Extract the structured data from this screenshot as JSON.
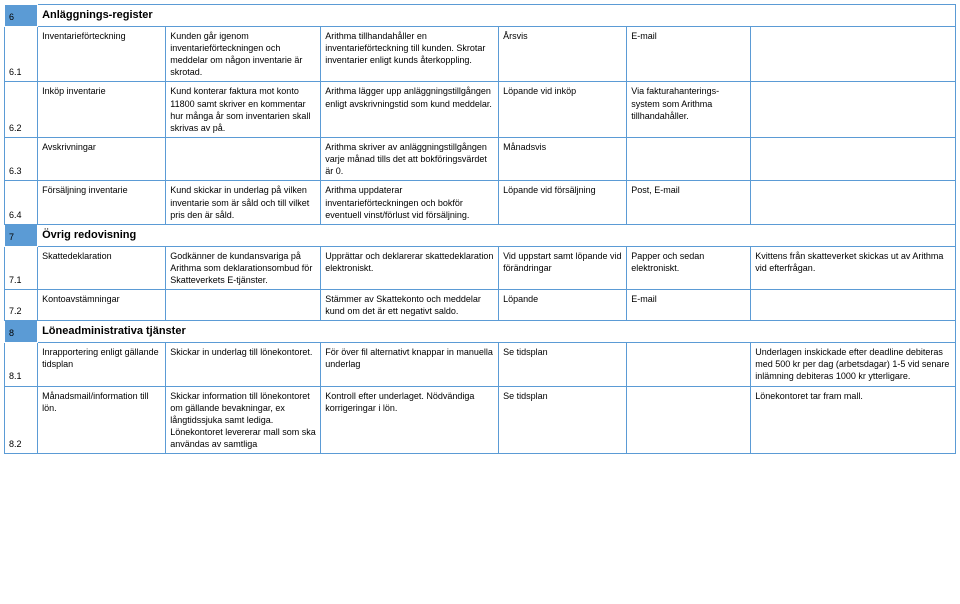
{
  "rows": [
    {
      "num": "6",
      "numClass": "num-blue",
      "header": "Anläggnings-register",
      "cells": null
    },
    {
      "num": "6.1",
      "cells": [
        "Inventarieförteckning",
        "Kunden går igenom inventarieförteckningen och meddelar om någon inventarie är skrotad.",
        "Arithma tillhandahåller en inventarieförteckning till kunden. Skrotar inventarier enligt kunds återkoppling.",
        "Årsvis",
        "E-mail",
        ""
      ]
    },
    {
      "num": "6.2",
      "cells": [
        "Inköp inventarie",
        "Kund konterar faktura mot konto 11800 samt skriver en kommentar hur många år som inventarien skall skrivas av på.",
        "Arithma lägger upp anläggningstillgången enligt avskrivningstid som kund meddelar.",
        "Löpande vid inköp",
        "Via fakturahanterings-system som Arithma tillhandahåller.",
        ""
      ]
    },
    {
      "num": "6.3",
      "cells": [
        "Avskrivningar",
        "",
        "Arithma skriver av anläggningstillgången varje månad tills det att bokföringsvärdet är 0.",
        "Månadsvis",
        "",
        ""
      ]
    },
    {
      "num": "6.4",
      "cells": [
        "Försäljning inventarie",
        "Kund skickar in underlag på vilken inventarie som är såld och till vilket pris den är såld.",
        "Arithma uppdaterar inventarieförteckningen och bokför eventuell vinst/förlust vid försäljning.",
        "Löpande vid försäljning",
        "Post, E-mail",
        ""
      ]
    },
    {
      "num": "7",
      "numClass": "num-blue",
      "header": "Övrig redovisning",
      "cells": null
    },
    {
      "num": "7.1",
      "cells": [
        "Skattedeklaration",
        "Godkänner de kundansvariga på Arithma som deklarationsombud för Skatteverkets E-tjänster.",
        "Upprättar och deklarerar skattedeklaration elektroniskt.",
        "Vid uppstart samt löpande vid förändringar",
        "Papper och sedan elektroniskt.",
        "Kvittens från skatteverket skickas ut av Arithma vid efterfrågan."
      ]
    },
    {
      "num": "7.2",
      "cells": [
        "Kontoavstämningar",
        "",
        "Stämmer av Skattekonto och meddelar kund om det är ett negativt saldo.",
        "Löpande",
        "E-mail",
        ""
      ]
    },
    {
      "num": "8",
      "numClass": "num-blue",
      "header": "Löneadministrativa tjänster",
      "cells": null
    },
    {
      "num": "8.1",
      "cells": [
        "Inrapportering enligt gällande tidsplan",
        "Skickar in underlag till lönekontoret.",
        "För över fil alternativt knappar in manuella underlag",
        "Se tidsplan",
        "",
        "Underlagen inskickade efter deadline debiteras med 500 kr per dag (arbetsdagar) 1-5 vid senare inlämning debiteras 1000 kr ytterligare."
      ]
    },
    {
      "num": "8.2",
      "cells": [
        "Månadsmail/information till lön.",
        "Skickar information till lönekontoret om gällande bevakningar, ex långtidssjuka samt lediga. Lönekontoret levererar mall som ska användas av samtliga",
        "Kontroll efter underlaget. Nödvändiga korrigeringar i lön.",
        "Se tidsplan",
        "",
        "Lönekontoret tar fram mall."
      ]
    }
  ]
}
